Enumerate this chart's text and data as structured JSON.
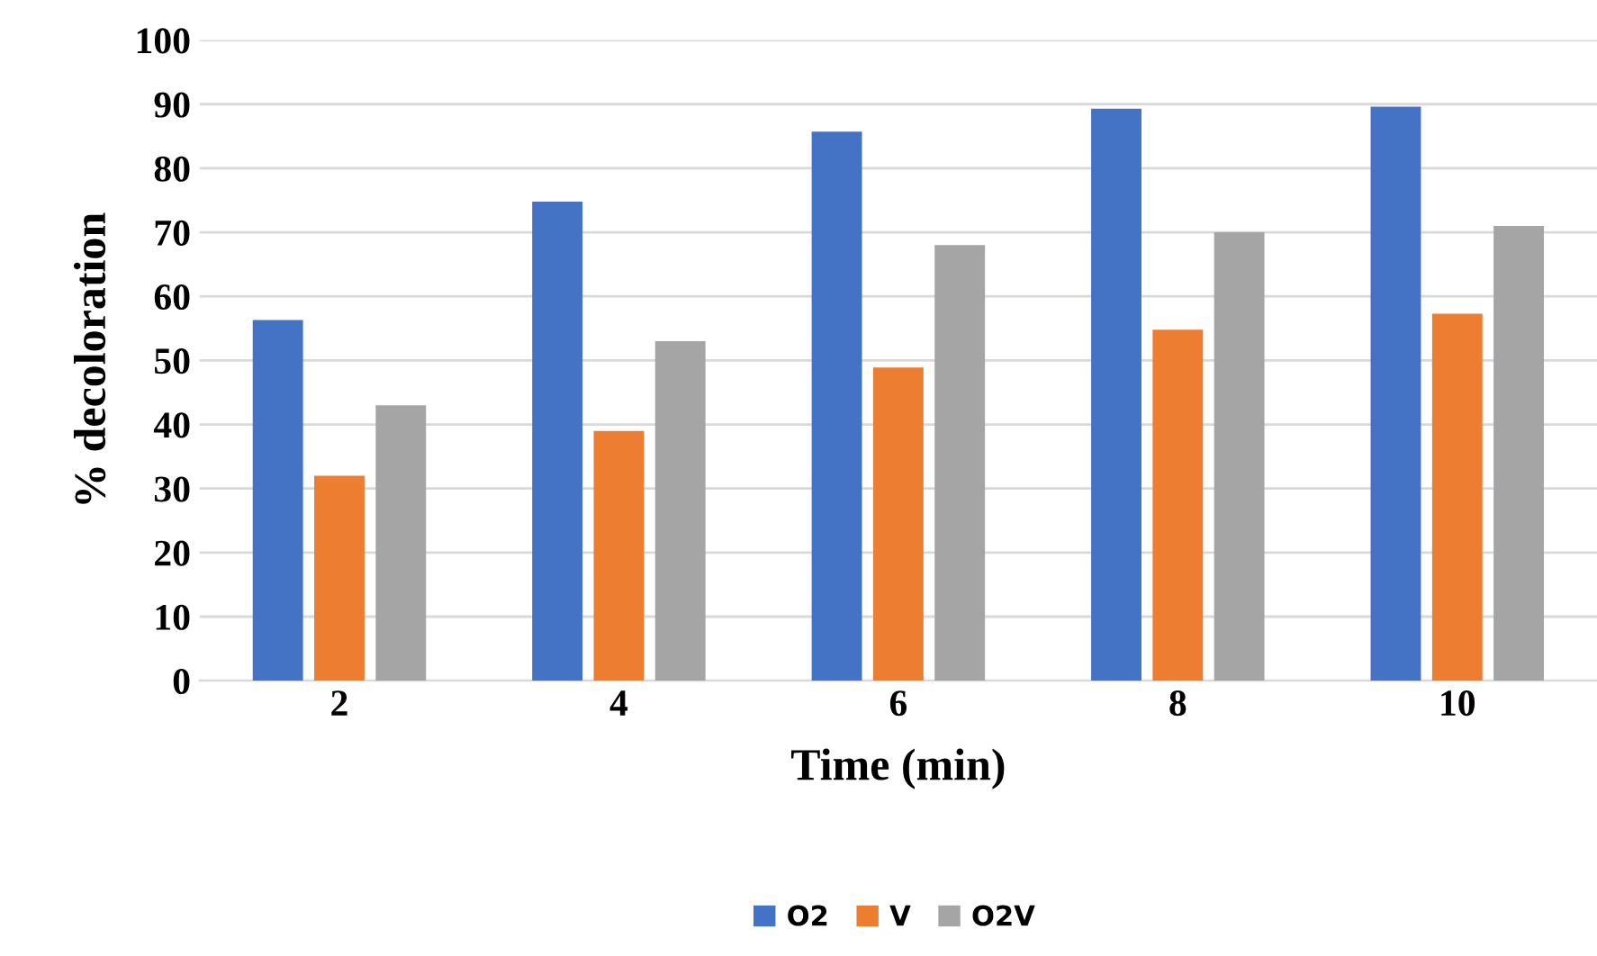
{
  "chart_data": {
    "type": "bar",
    "xlabel": "Time (min)",
    "ylabel": "% decoloration",
    "categories": [
      "2",
      "4",
      "6",
      "8",
      "10"
    ],
    "series": [
      {
        "name": "O2",
        "color": "#4472c4",
        "values": [
          56.3,
          74.8,
          85.7,
          89.3,
          89.6
        ]
      },
      {
        "name": "V",
        "color": "#ed7d31",
        "values": [
          32.0,
          39.0,
          48.9,
          54.8,
          57.3
        ]
      },
      {
        "name": "O2V",
        "color": "#a5a5a5",
        "values": [
          43.0,
          53.0,
          68.0,
          70.0,
          71.0
        ]
      }
    ],
    "ylim": [
      0,
      100
    ],
    "yticks": [
      0,
      10,
      20,
      30,
      40,
      50,
      60,
      70,
      80,
      90,
      100
    ],
    "grid": "y",
    "legend": "bottom"
  }
}
